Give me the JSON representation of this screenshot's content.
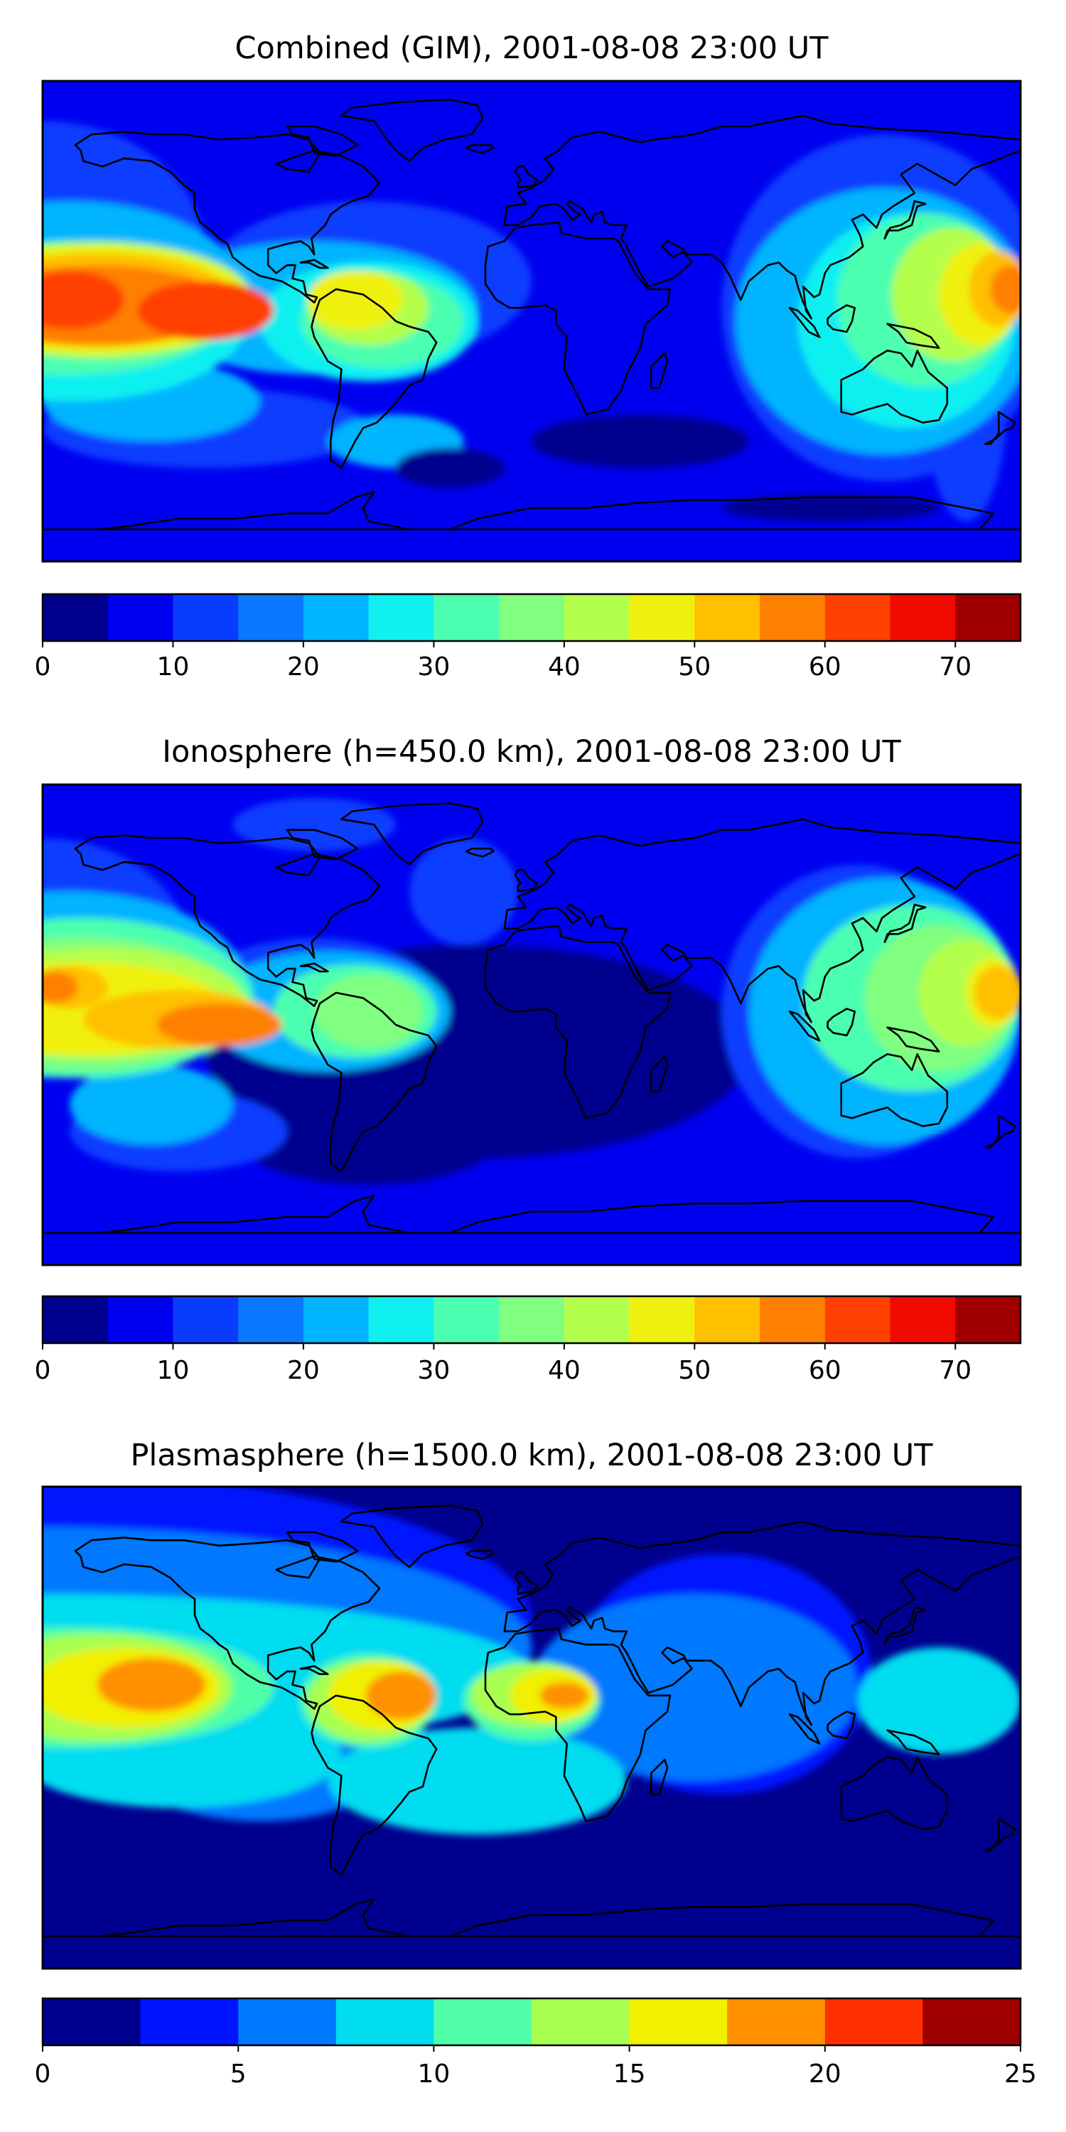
{
  "figure": {
    "background": "#ffffff",
    "land_outline_color": "#000000"
  },
  "colormaps": {
    "jet15": [
      "#00008f",
      "#0000f0",
      "#0a3cff",
      "#0a78ff",
      "#00b4ff",
      "#10f0f0",
      "#4cffb0",
      "#80ff80",
      "#b4ff4c",
      "#f0f010",
      "#ffc000",
      "#ff8000",
      "#ff4000",
      "#f00a00",
      "#a00000"
    ],
    "jet10": [
      "#00008f",
      "#0014ff",
      "#0078ff",
      "#00dcf0",
      "#50ffa8",
      "#a8ff50",
      "#f0f000",
      "#ff9000",
      "#ff3000",
      "#a00000"
    ]
  },
  "chart_data": [
    {
      "type": "heatmap",
      "title": "Combined (GIM), 2001-08-08 23:00 UT",
      "projection": "PlateCarree",
      "lon_range": [
        -180,
        180
      ],
      "lat_range": [
        -90,
        90
      ],
      "colormap": "jet15",
      "colorbar": {
        "vmin": 0,
        "vmax": 75,
        "step": 5,
        "ticks": [
          0,
          10,
          20,
          30,
          40,
          50,
          60,
          70
        ],
        "tick_labels": [
          "0",
          "10",
          "20",
          "30",
          "40",
          "50",
          "60",
          "70"
        ]
      },
      "background_level": 1,
      "regions": [
        {
          "level": 2,
          "blobs": [
            [
              -180,
              25,
              120,
              100
            ],
            [
              -60,
              15,
              120,
              60
            ],
            [
              130,
              5,
              120,
              130
            ],
            [
              -120,
              -40,
              120,
              30
            ],
            [
              160,
              -30,
              30,
              90
            ]
          ]
        },
        {
          "level": 4,
          "blobs": [
            [
              -170,
              10,
              130,
              70
            ],
            [
              -80,
              5,
              120,
              50
            ],
            [
              130,
              0,
              110,
              100
            ],
            [
              -140,
              -30,
              80,
              30
            ],
            [
              -50,
              -45,
              50,
              20
            ]
          ]
        },
        {
          "level": 5,
          "blobs": [
            [
              -170,
              0,
              130,
              60
            ],
            [
              -60,
              0,
              80,
              45
            ],
            [
              138,
              0,
              80,
              80
            ]
          ]
        },
        {
          "level": 6,
          "blobs": [
            [
              -170,
              5,
              120,
              50
            ],
            [
              -55,
              0,
              60,
              35
            ],
            [
              145,
              8,
              65,
              65
            ]
          ]
        },
        {
          "level": 8,
          "blobs": [
            [
              -160,
              8,
              115,
              44
            ],
            [
              -60,
              5,
              44,
              28
            ],
            [
              155,
              10,
              45,
              50
            ]
          ]
        },
        {
          "level": 9,
          "blobs": [
            [
              -160,
              8,
              110,
              40
            ],
            [
              -65,
              8,
              35,
              22
            ],
            [
              165,
              10,
              30,
              38
            ]
          ]
        },
        {
          "level": 10,
          "blobs": [
            [
              -160,
              8,
              100,
              35
            ],
            [
              172,
              12,
              22,
              28
            ]
          ]
        },
        {
          "level": 11,
          "blobs": [
            [
              -160,
              6,
              95,
              30
            ],
            [
              176,
              12,
              14,
              18
            ]
          ]
        },
        {
          "level": 12,
          "blobs": [
            [
              -170,
              8,
              40,
              22
            ],
            [
              -120,
              4,
              50,
              22
            ]
          ]
        },
        {
          "level": 0,
          "blobs": [
            [
              40,
              -45,
              80,
              20
            ],
            [
              -30,
              -55,
              40,
              15
            ],
            [
              110,
              -70,
              80,
              10
            ]
          ]
        }
      ]
    },
    {
      "type": "heatmap",
      "title": "Ionosphere  (h=450.0 km), 2001-08-08 23:00 UT",
      "projection": "PlateCarree",
      "lon_range": [
        -180,
        180
      ],
      "lat_range": [
        -90,
        90
      ],
      "colormap": "jet15",
      "colorbar": {
        "vmin": 0,
        "vmax": 75,
        "step": 5,
        "ticks": [
          0,
          10,
          20,
          30,
          40,
          50,
          60,
          70
        ],
        "tick_labels": [
          "0",
          "10",
          "20",
          "30",
          "40",
          "50",
          "60",
          "70"
        ]
      },
      "background_level": 1,
      "regions": [
        {
          "level": 0,
          "blobs": [
            [
              -20,
              -10,
              200,
              80
            ],
            [
              -60,
              -40,
              100,
              40
            ]
          ]
        },
        {
          "level": 2,
          "blobs": [
            [
              -180,
              25,
              110,
              90
            ],
            [
              -80,
              10,
              90,
              45
            ],
            [
              120,
              5,
              100,
              110
            ],
            [
              -130,
              -40,
              80,
              30
            ],
            [
              -25,
              50,
              40,
              40
            ],
            [
              -80,
              75,
              60,
              20
            ]
          ]
        },
        {
          "level": 4,
          "blobs": [
            [
              -170,
              15,
              130,
              70
            ],
            [
              -75,
              5,
              90,
              45
            ],
            [
              130,
              5,
              100,
              100
            ],
            [
              -140,
              -30,
              60,
              30
            ]
          ]
        },
        {
          "level": 6,
          "blobs": [
            [
              -165,
              10,
              125,
              60
            ],
            [
              -65,
              5,
              60,
              35
            ],
            [
              140,
              10,
              80,
              70
            ]
          ]
        },
        {
          "level": 7,
          "blobs": [
            [
              -165,
              8,
              115,
              50
            ],
            [
              -60,
              5,
              40,
              28
            ],
            [
              150,
              10,
              55,
              55
            ]
          ]
        },
        {
          "level": 8,
          "blobs": [
            [
              -160,
              8,
              110,
              42
            ],
            [
              160,
              12,
              35,
              40
            ]
          ]
        },
        {
          "level": 9,
          "blobs": [
            [
              -165,
              6,
              105,
              35
            ],
            [
              170,
              12,
              20,
              26
            ]
          ]
        },
        {
          "level": 10,
          "blobs": [
            [
              -170,
              14,
              28,
              16
            ],
            [
              -130,
              2,
              70,
              22
            ],
            [
              172,
              12,
              18,
              20
            ]
          ]
        },
        {
          "level": 11,
          "blobs": [
            [
              -176,
              14,
              18,
              12
            ],
            [
              -115,
              0,
              46,
              16
            ]
          ]
        }
      ]
    },
    {
      "type": "heatmap",
      "title": "Plasmasphere (h=1500.0 km), 2001-08-08 23:00 UT",
      "projection": "PlateCarree",
      "lon_range": [
        -180,
        180
      ],
      "lat_range": [
        -90,
        90
      ],
      "colormap": "jet10",
      "colorbar": {
        "vmin": 0,
        "vmax": 25,
        "step": 2.5,
        "ticks": [
          0,
          5,
          10,
          15,
          20,
          25
        ],
        "tick_labels": [
          "0",
          "5",
          "10",
          "15",
          "20",
          "25"
        ]
      },
      "background_level": 0,
      "regions": [
        {
          "level": 1,
          "blobs": [
            [
              -180,
              40,
              360,
              110
            ],
            [
              -100,
              10,
              120,
              80
            ],
            [
              70,
              20,
              110,
              90
            ]
          ]
        },
        {
          "level": 2,
          "blobs": [
            [
              -180,
              30,
              360,
              90
            ],
            [
              -100,
              0,
              120,
              70
            ],
            [
              60,
              15,
              120,
              70
            ]
          ]
        },
        {
          "level": 3,
          "blobs": [
            [
              -180,
              20,
              360,
              60
            ],
            [
              -130,
              -10,
              120,
              40
            ],
            [
              -20,
              -20,
              110,
              40
            ],
            [
              150,
              10,
              60,
              40
            ]
          ]
        },
        {
          "level": 4,
          "blobs": [
            [
              -170,
              15,
              150,
              45
            ],
            [
              -60,
              10,
              50,
              35
            ],
            [
              0,
              10,
              50,
              30
            ]
          ]
        },
        {
          "level": 5,
          "blobs": [
            [
              -160,
              15,
              100,
              40
            ],
            [
              -60,
              10,
              45,
              30
            ],
            [
              0,
              12,
              45,
              24
            ]
          ]
        },
        {
          "level": 6,
          "blobs": [
            [
              -150,
              15,
              70,
              30
            ],
            [
              -55,
              12,
              40,
              26
            ],
            [
              8,
              12,
              32,
              20
            ]
          ]
        },
        {
          "level": 7,
          "blobs": [
            [
              -140,
              16,
              40,
              20
            ],
            [
              -48,
              12,
              26,
              18
            ],
            [
              12,
              12,
              18,
              10
            ]
          ]
        }
      ]
    }
  ]
}
